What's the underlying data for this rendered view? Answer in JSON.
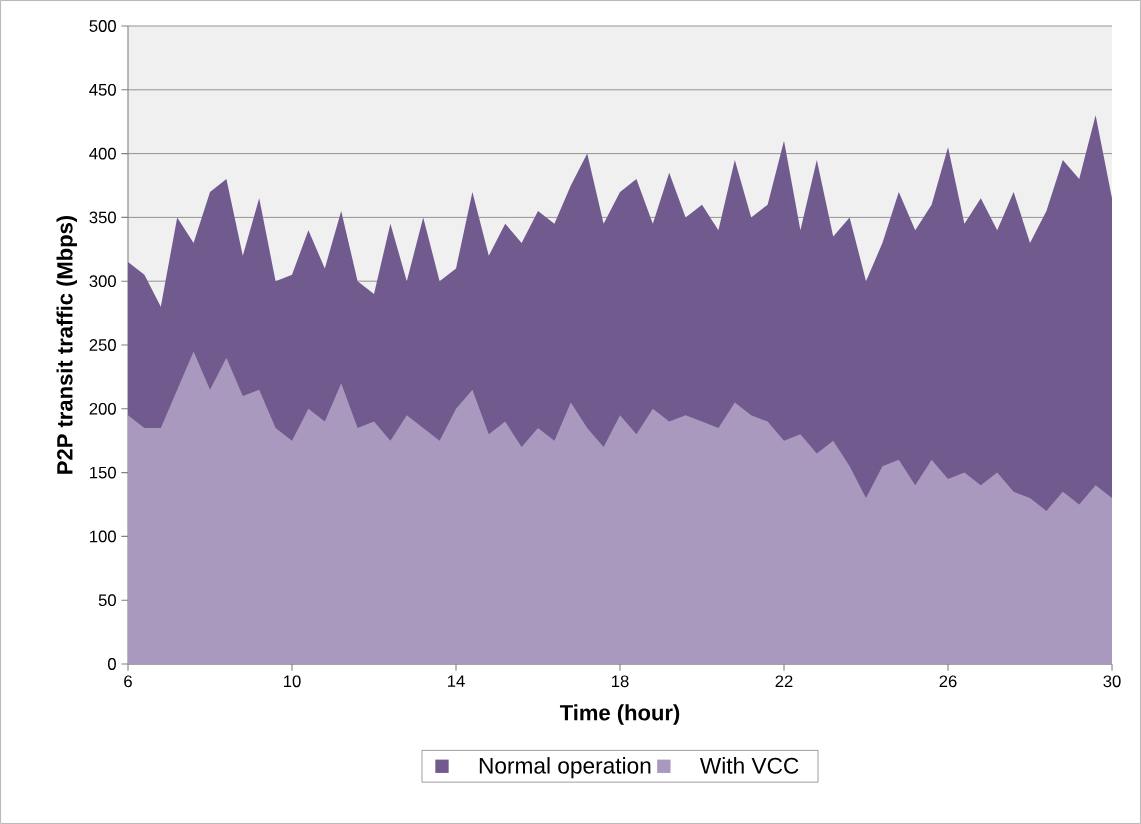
{
  "chart_data": {
    "type": "area",
    "xlabel": "Time (hour)",
    "ylabel": "P2P transit traffic (Mbps)",
    "x": [
      6.0,
      6.4,
      6.8,
      7.2,
      7.6,
      8.0,
      8.4,
      8.8,
      9.2,
      9.6,
      10.0,
      10.4,
      10.8,
      11.2,
      11.6,
      12.0,
      12.4,
      12.8,
      13.2,
      13.6,
      14.0,
      14.4,
      14.8,
      15.2,
      15.6,
      16.0,
      16.4,
      16.8,
      17.2,
      17.6,
      18.0,
      18.4,
      18.8,
      19.2,
      19.6,
      20.0,
      20.4,
      20.8,
      21.2,
      21.6,
      22.0,
      22.4,
      22.8,
      23.2,
      23.6,
      24.0,
      24.4,
      24.8,
      25.2,
      25.6,
      26.0,
      26.4,
      26.8,
      27.2,
      27.6,
      28.0,
      28.4,
      28.8,
      29.2,
      29.6,
      30.0
    ],
    "series": [
      {
        "name": "Normal operation",
        "color": "#715a8e",
        "values": [
          315,
          305,
          280,
          350,
          330,
          370,
          380,
          320,
          365,
          300,
          305,
          340,
          310,
          355,
          300,
          290,
          345,
          300,
          350,
          300,
          310,
          370,
          320,
          345,
          330,
          355,
          345,
          375,
          400,
          345,
          370,
          380,
          345,
          385,
          350,
          360,
          340,
          395,
          350,
          360,
          410,
          340,
          395,
          335,
          350,
          300,
          330,
          370,
          340,
          360,
          405,
          345,
          365,
          340,
          370,
          330,
          355,
          395,
          380,
          430,
          365
        ]
      },
      {
        "name": "With VCC",
        "color": "#a999be",
        "values": [
          195,
          185,
          185,
          215,
          245,
          215,
          240,
          210,
          215,
          185,
          175,
          200,
          190,
          220,
          185,
          190,
          175,
          195,
          185,
          175,
          200,
          215,
          180,
          190,
          170,
          185,
          175,
          205,
          185,
          170,
          195,
          180,
          200,
          190,
          195,
          190,
          185,
          205,
          195,
          190,
          175,
          180,
          165,
          175,
          155,
          130,
          155,
          160,
          140,
          160,
          145,
          150,
          140,
          150,
          135,
          130,
          120,
          135,
          125,
          140,
          130
        ]
      }
    ],
    "xlim": [
      6,
      30
    ],
    "xticks": [
      6,
      10,
      14,
      18,
      22,
      26,
      30
    ],
    "ylim": [
      0,
      500
    ],
    "yticks": [
      0,
      50,
      100,
      150,
      200,
      250,
      300,
      350,
      400,
      450,
      500
    ],
    "grid": "y",
    "legend": "bottom"
  }
}
